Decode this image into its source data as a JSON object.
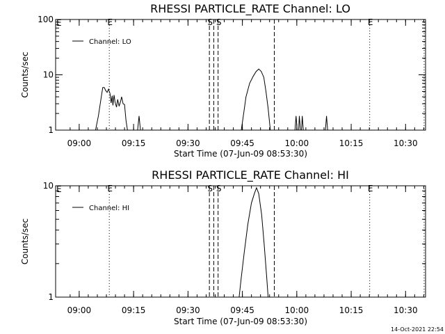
{
  "footer_timestamp": "14-Oct-2021 22:54",
  "chart_data": [
    {
      "type": "line",
      "title": "RHESSI PARTICLE_RATE Channel: LO",
      "xlabel": "Start Time (07-Jun-09 08:53:30)",
      "ylabel": "Counts/sec",
      "yscale": "log",
      "ylim": [
        1,
        100
      ],
      "ytick_labels": [
        [
          "100",
          100
        ],
        [
          "10",
          10
        ],
        [
          "1",
          1
        ]
      ],
      "xlim_minutes": [
        0,
        102
      ],
      "xtick_labels": [
        [
          "09:00",
          6.5
        ],
        [
          "09:15",
          21.5
        ],
        [
          "09:30",
          36.5
        ],
        [
          "09:45",
          51.5
        ],
        [
          "10:00",
          66.5
        ],
        [
          "10:15",
          81.5
        ],
        [
          "10:30",
          96.5
        ]
      ],
      "legend": {
        "label": "Channel: LO",
        "position": "top-left"
      },
      "event_lines": [
        {
          "minute": 14.8,
          "style": "dotted",
          "label": "E"
        },
        {
          "minute": 42.4,
          "style": "dashed",
          "label": "S"
        },
        {
          "minute": 43.6,
          "style": "dashed",
          "label": ""
        },
        {
          "minute": 44.8,
          "style": "dashed",
          "label": "S"
        },
        {
          "minute": 60.3,
          "style": "dashed",
          "label": ""
        },
        {
          "minute": 86.6,
          "style": "dotted",
          "label": "E"
        },
        {
          "minute": 101.6,
          "style": "dotted",
          "label": ""
        }
      ],
      "edge_label": "E",
      "series": [
        {
          "points": [
            [
              11.0,
              1
            ],
            [
              11.8,
              1.8
            ],
            [
              12.6,
              4
            ],
            [
              13.0,
              5.9
            ],
            [
              13.4,
              5.9
            ],
            [
              13.8,
              5.2
            ],
            [
              14.2,
              4.8
            ],
            [
              14.6,
              5.5
            ],
            [
              15.0,
              4.6
            ],
            [
              15.3,
              3.1
            ],
            [
              15.6,
              4.2
            ],
            [
              15.8,
              2.8
            ],
            [
              16.1,
              4.3
            ],
            [
              16.4,
              3.2
            ],
            [
              16.8,
              2.6
            ],
            [
              17.1,
              3.6
            ],
            [
              17.5,
              2.7
            ],
            [
              17.9,
              3.3
            ],
            [
              18.2,
              4.0
            ],
            [
              18.6,
              3.0
            ],
            [
              19.0,
              2.9
            ],
            [
              19.4,
              1.5
            ],
            [
              19.8,
              1
            ],
            [
              22.6,
              1
            ],
            [
              23.0,
              1.8
            ],
            [
              23.4,
              1
            ],
            [
              51.2,
              1
            ],
            [
              51.8,
              1.9
            ],
            [
              52.5,
              4.0
            ],
            [
              53.5,
              7.0
            ],
            [
              54.5,
              9.5
            ],
            [
              55.3,
              11.5
            ],
            [
              56.0,
              12.7
            ],
            [
              56.7,
              11.5
            ],
            [
              57.4,
              9.0
            ],
            [
              58.0,
              5.0
            ],
            [
              58.6,
              2.5
            ],
            [
              59.2,
              1
            ],
            [
              66.0,
              1
            ],
            [
              66.3,
              1.8
            ],
            [
              66.6,
              1
            ],
            [
              67.0,
              1
            ],
            [
              67.2,
              1.8
            ],
            [
              67.5,
              1
            ],
            [
              67.8,
              1
            ],
            [
              68.0,
              1.8
            ],
            [
              68.3,
              1
            ],
            [
              74.4,
              1
            ],
            [
              74.7,
              1.8
            ],
            [
              75.0,
              1
            ]
          ]
        }
      ]
    },
    {
      "type": "line",
      "title": "RHESSI PARTICLE_RATE Channel: HI",
      "xlabel": "Start Time (07-Jun-09 08:53:30)",
      "ylabel": "Counts/sec",
      "yscale": "log",
      "ylim": [
        1,
        10
      ],
      "ytick_labels": [
        [
          "10",
          10
        ],
        [
          "1",
          1
        ]
      ],
      "xlim_minutes": [
        0,
        102
      ],
      "xtick_labels": [
        [
          "09:00",
          6.5
        ],
        [
          "09:15",
          21.5
        ],
        [
          "09:30",
          36.5
        ],
        [
          "09:45",
          51.5
        ],
        [
          "10:00",
          66.5
        ],
        [
          "10:15",
          81.5
        ],
        [
          "10:30",
          96.5
        ]
      ],
      "legend": {
        "label": "Channel: HI",
        "position": "top-left"
      },
      "event_lines": [
        {
          "minute": 14.8,
          "style": "dotted",
          "label": "E"
        },
        {
          "minute": 42.4,
          "style": "dashed",
          "label": "S"
        },
        {
          "minute": 43.6,
          "style": "dashed",
          "label": ""
        },
        {
          "minute": 44.8,
          "style": "dashed",
          "label": "S"
        },
        {
          "minute": 60.3,
          "style": "dashed",
          "label": ""
        },
        {
          "minute": 86.6,
          "style": "dotted",
          "label": "E"
        },
        {
          "minute": 101.6,
          "style": "dotted",
          "label": ""
        }
      ],
      "edge_label": "E",
      "series": [
        {
          "points": [
            [
              50.6,
              1
            ],
            [
              51.2,
              1.5
            ],
            [
              52.0,
              2.5
            ],
            [
              53.0,
              4.5
            ],
            [
              54.0,
              7.0
            ],
            [
              54.8,
              8.5
            ],
            [
              55.4,
              9.6
            ],
            [
              56.0,
              8.5
            ],
            [
              56.8,
              5.5
            ],
            [
              57.5,
              3.0
            ],
            [
              58.2,
              1.5
            ],
            [
              58.6,
              1
            ]
          ]
        }
      ]
    }
  ]
}
